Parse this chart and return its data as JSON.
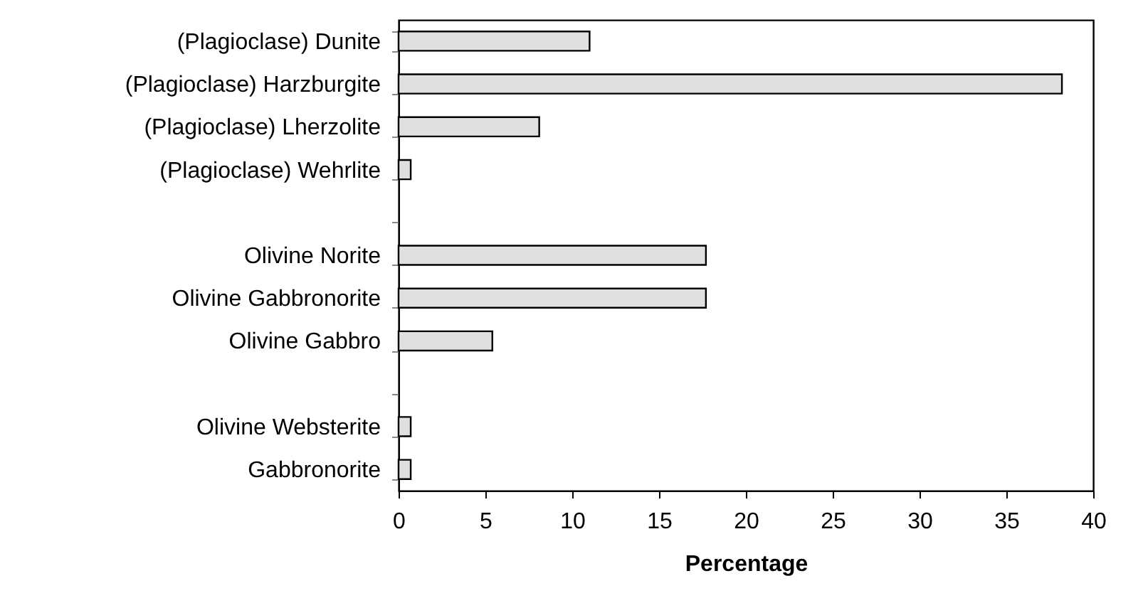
{
  "chart_data": {
    "type": "bar",
    "orientation": "horizontal",
    "xlabel": "Percentage",
    "categories": [
      "(Plagioclase) Dunite",
      "(Plagioclase) Harzburgite",
      "(Plagioclase) Lherzolite",
      "(Plagioclase) Wehrlite",
      null,
      "Olivine  Norite",
      "Olivine Gabbronorite",
      "Olivine Gabbro",
      null,
      "Olivine Websterite",
      "Gabbronorite"
    ],
    "values": [
      11.0,
      38.2,
      8.1,
      0.7,
      null,
      17.7,
      17.7,
      5.4,
      null,
      0.7,
      0.7
    ],
    "color": "#e0e0e0",
    "xlim": [
      0,
      40
    ],
    "xticks": [
      0,
      5,
      10,
      15,
      20,
      25,
      30,
      35,
      40
    ],
    "grid": false
  }
}
